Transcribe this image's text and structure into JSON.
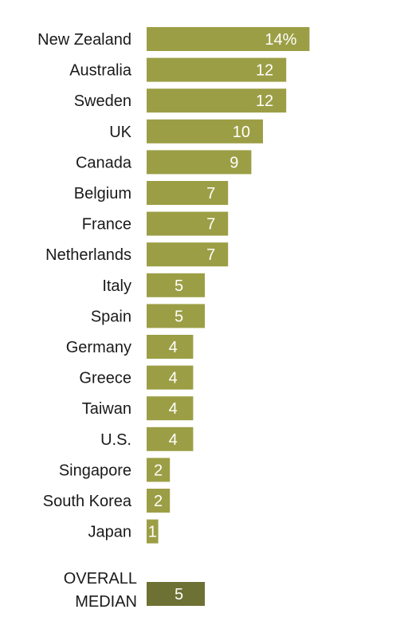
{
  "chart_data": {
    "type": "bar",
    "orientation": "horizontal",
    "categories": [
      "New Zealand",
      "Australia",
      "Sweden",
      "UK",
      "Canada",
      "Belgium",
      "France",
      "Netherlands",
      "Italy",
      "Spain",
      "Germany",
      "Greece",
      "Taiwan",
      "U.S.",
      "Singapore",
      "South Korea",
      "Japan"
    ],
    "values": [
      14,
      12,
      12,
      10,
      9,
      7,
      7,
      7,
      5,
      5,
      4,
      4,
      4,
      4,
      2,
      2,
      1
    ],
    "value_labels": [
      "14%",
      "12",
      "12",
      "10",
      "9",
      "7",
      "7",
      "7",
      "5",
      "5",
      "4",
      "4",
      "4",
      "4",
      "2",
      "2",
      "1"
    ],
    "summary": {
      "label_lines": [
        "OVERALL",
        "MEDIAN"
      ],
      "value": 5,
      "value_label": "5"
    },
    "colors": {
      "bar": "#9c9e45",
      "summary_bar": "#6e7134",
      "label_text": "#1a1a1a",
      "value_text": "#ffffff"
    },
    "legend": "none",
    "grid": false
  }
}
